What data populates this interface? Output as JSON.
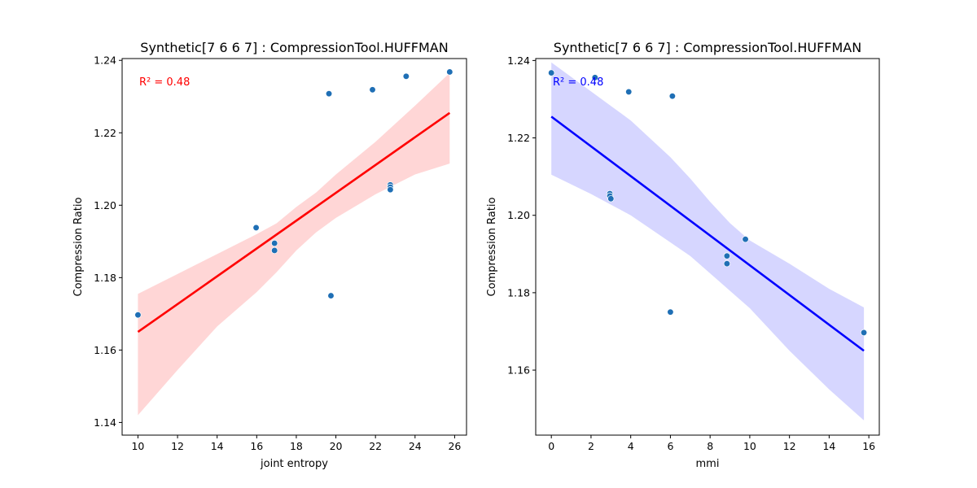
{
  "chart_data": [
    {
      "type": "scatter",
      "title": "Synthetic[7 6 6 7] : CompressionTool.HUFFMAN",
      "xlabel": "joint entropy",
      "ylabel": "Compression Ratio",
      "xlim": [
        9.2,
        26.6
      ],
      "ylim": [
        1.1365,
        1.2405
      ],
      "xticks": [
        "10",
        "12",
        "14",
        "16",
        "18",
        "20",
        "22",
        "24",
        "26"
      ],
      "yticks": [
        "1.14",
        "1.16",
        "1.18",
        "1.20",
        "1.22",
        "1.24"
      ],
      "points": [
        {
          "x": 10.0,
          "y": 1.1697
        },
        {
          "x": 15.97,
          "y": 1.1938
        },
        {
          "x": 16.9,
          "y": 1.1895
        },
        {
          "x": 16.9,
          "y": 1.1875
        },
        {
          "x": 19.65,
          "y": 1.2308
        },
        {
          "x": 19.75,
          "y": 1.175
        },
        {
          "x": 21.85,
          "y": 1.2319
        },
        {
          "x": 22.75,
          "y": 1.2056
        },
        {
          "x": 22.75,
          "y": 1.205
        },
        {
          "x": 22.75,
          "y": 1.2043
        },
        {
          "x": 23.55,
          "y": 1.2356
        },
        {
          "x": 25.75,
          "y": 1.2368
        }
      ],
      "fit": {
        "x": [
          10.0,
          25.75
        ],
        "y": [
          1.165,
          1.2255
        ]
      },
      "band": {
        "x": [
          10.0,
          12.0,
          14.0,
          16.0,
          17.0,
          18.0,
          19.0,
          20.0,
          22.0,
          24.0,
          25.75
        ],
        "lower": [
          1.142,
          1.1545,
          1.1665,
          1.176,
          1.1815,
          1.1875,
          1.1925,
          1.1965,
          1.203,
          1.2085,
          1.2115
        ],
        "upper": [
          1.1755,
          1.181,
          1.1865,
          1.192,
          1.195,
          1.1995,
          1.2035,
          1.2085,
          1.2175,
          1.2275,
          1.2365
        ]
      },
      "annotation": "R² = 0.48",
      "fit_color": "#ff0000",
      "band_color": "#ffd6d6",
      "point_color": "#1f6fb5"
    },
    {
      "type": "scatter",
      "title": "Synthetic[7 6 6 7] : CompressionTool.HUFFMAN",
      "xlabel": "mmi",
      "ylabel": "Compression Ratio",
      "xlim": [
        -0.787,
        16.527
      ],
      "ylim": [
        1.1432,
        1.2405
      ],
      "xticks": [
        "0",
        "2",
        "4",
        "6",
        "8",
        "10",
        "12",
        "14",
        "16"
      ],
      "yticks": [
        "1.16",
        "1.18",
        "1.20",
        "1.22",
        "1.24"
      ],
      "points": [
        {
          "x": 0.0,
          "y": 1.2368
        },
        {
          "x": 2.2,
          "y": 1.2356
        },
        {
          "x": 3.9,
          "y": 1.2319
        },
        {
          "x": 6.0,
          "y": 1.175
        },
        {
          "x": 6.1,
          "y": 1.2308
        },
        {
          "x": 2.95,
          "y": 1.2056
        },
        {
          "x": 2.95,
          "y": 1.205
        },
        {
          "x": 3.0,
          "y": 1.2043
        },
        {
          "x": 8.85,
          "y": 1.1895
        },
        {
          "x": 8.85,
          "y": 1.1875
        },
        {
          "x": 9.78,
          "y": 1.1938
        },
        {
          "x": 15.75,
          "y": 1.1697
        }
      ],
      "fit": {
        "x": [
          0.0,
          15.75
        ],
        "y": [
          1.2255,
          1.165
        ]
      },
      "band": {
        "x": [
          0.0,
          2.0,
          4.0,
          6.0,
          7.0,
          8.0,
          9.0,
          10.0,
          12.0,
          14.0,
          15.75
        ],
        "lower": [
          1.2105,
          1.2055,
          1.2,
          1.193,
          1.1895,
          1.185,
          1.1805,
          1.176,
          1.165,
          1.155,
          1.147
        ],
        "upper": [
          1.2395,
          1.232,
          1.2245,
          1.215,
          1.2095,
          1.2035,
          1.198,
          1.1935,
          1.1875,
          1.181,
          1.1762
        ]
      },
      "annotation": "R² = 0.48",
      "fit_color": "#0000ff",
      "band_color": "#d6d6ff",
      "point_color": "#1f6fb5"
    }
  ]
}
